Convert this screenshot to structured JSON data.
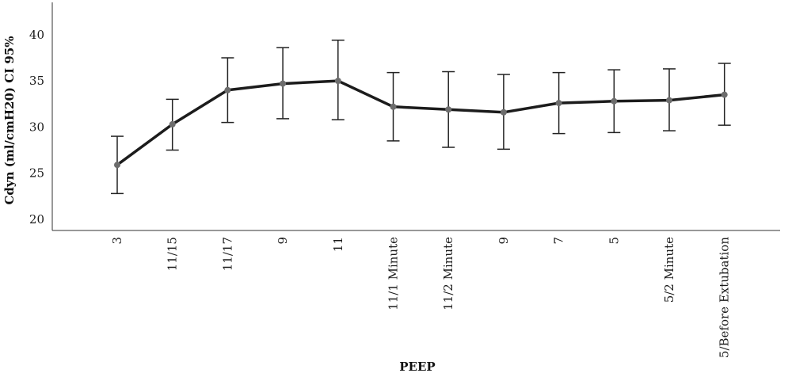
{
  "chart_data": {
    "type": "line",
    "xlabel": "PEEP",
    "ylabel": "Cdyn (ml/cmH20) CI 95%",
    "categories": [
      "3",
      "11/15",
      "11/17",
      "9",
      "11",
      "11/1 Minute",
      "11/2 Minute",
      "9",
      "7",
      "5",
      "5/2 Minute",
      "5/Before Extubation"
    ],
    "values": [
      25.9,
      30.3,
      34.0,
      34.7,
      35.0,
      32.2,
      31.9,
      31.6,
      32.6,
      32.8,
      32.9,
      33.5
    ],
    "ci_lower": [
      22.8,
      27.5,
      30.5,
      30.9,
      30.8,
      28.5,
      27.8,
      27.6,
      29.3,
      29.4,
      29.6,
      30.2
    ],
    "ci_upper": [
      29.0,
      33.0,
      37.5,
      38.6,
      39.4,
      35.9,
      36.0,
      35.7,
      35.9,
      36.2,
      36.3,
      36.9
    ],
    "yticks": [
      20,
      25,
      30,
      35,
      40
    ],
    "ylim": [
      18.8,
      43.5
    ],
    "grid": false,
    "colors": {
      "line": "#1c1c1c",
      "point": "#6d6d6d",
      "errorbar": "#222222",
      "axis": "#333333"
    }
  }
}
